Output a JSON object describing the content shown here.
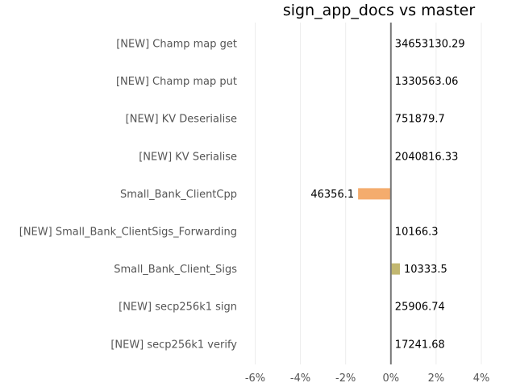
{
  "chart_data": {
    "type": "bar",
    "orientation": "horizontal",
    "title": "sign_app_docs vs master",
    "xlabel": "",
    "ylabel": "",
    "xlim": [
      -6.3,
      4.0
    ],
    "x_ticks": [
      -6,
      -4,
      -2,
      0,
      2,
      4
    ],
    "x_tick_labels": [
      "-6%",
      "-4%",
      "-2%",
      "0%",
      "2%",
      "4%"
    ],
    "grid": "vertical",
    "categories": [
      "[NEW] Champ map get",
      "[NEW] Champ map put",
      "[NEW] KV Deserialise",
      "[NEW] KV Serialise",
      "Small_Bank_ClientCpp",
      "[NEW] Small_Bank_ClientSigs_Forwarding",
      "Small_Bank_Client_Sigs",
      "[NEW] secp256k1 sign",
      "[NEW] secp256k1 verify"
    ],
    "values": [
      0,
      0,
      0,
      0,
      -1.45,
      0,
      0.4,
      0,
      0
    ],
    "value_labels": [
      "34653130.29",
      "1330563.06",
      "751879.7",
      "2040816.33",
      "46356.1",
      "10166.3",
      "10333.5",
      "25906.74",
      "17241.68"
    ],
    "bar_colors": [
      "#f4ac6d",
      "#f4ac6d",
      "#f4ac6d",
      "#f4ac6d",
      "#f4ac6d",
      "#f4ac6d",
      "#c2b770",
      "#f4ac6d",
      "#f4ac6d"
    ]
  }
}
